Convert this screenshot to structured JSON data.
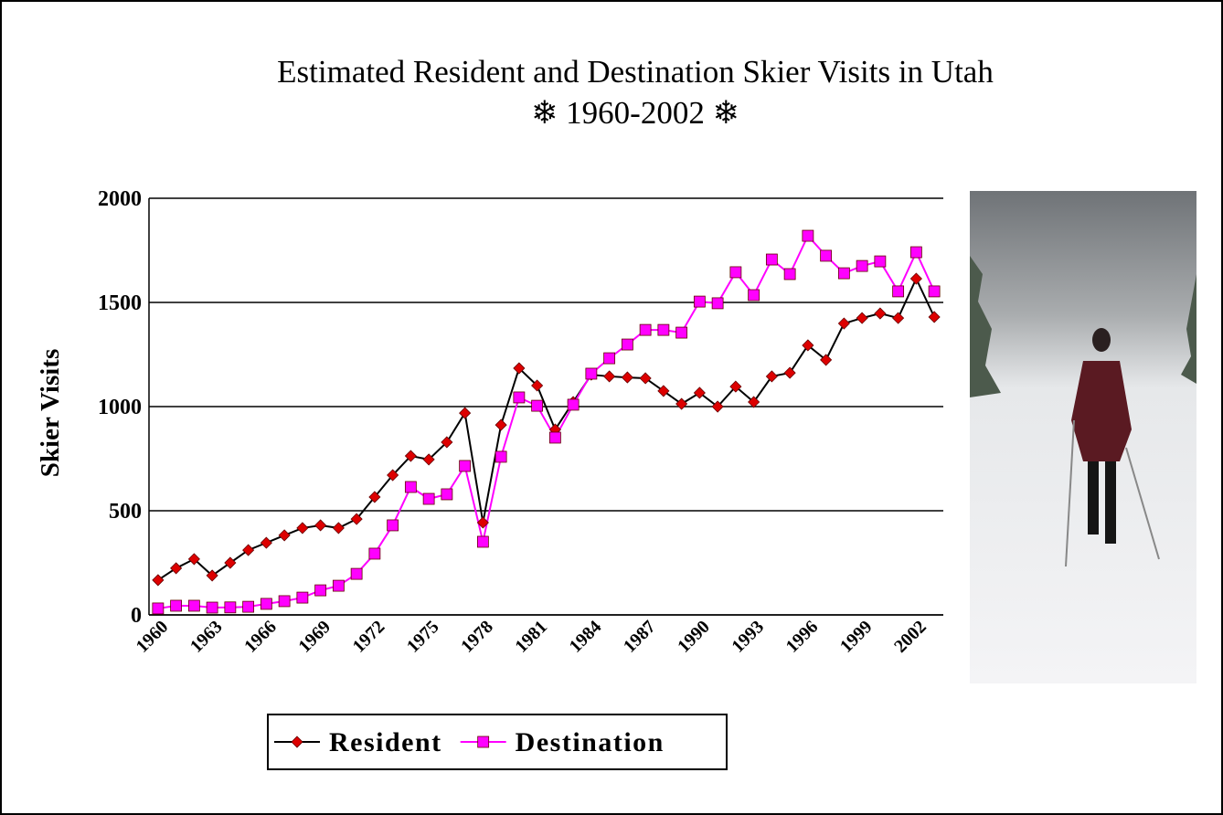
{
  "chart_data": {
    "type": "line",
    "title": "Estimated Resident and Destination Skier Visits in Utah",
    "subtitle": "❄ 1960-2002 ❄",
    "y_label": "Skier Visits",
    "categories": [
      "1960",
      null,
      null,
      "1963",
      null,
      null,
      "1966",
      null,
      null,
      "1969",
      null,
      null,
      "1972",
      null,
      null,
      "1975",
      null,
      null,
      "1978",
      null,
      null,
      "1981",
      null,
      null,
      "1984",
      null,
      null,
      "1987",
      null,
      null,
      "1990",
      null,
      null,
      "1993",
      null,
      null,
      "1996",
      null,
      null,
      "1999",
      null,
      null,
      "2002",
      null
    ],
    "series": [
      {
        "name": "Resident",
        "color": "#000000",
        "marker_color": "#dd0000",
        "marker": "diamond",
        "values": [
          167,
          224,
          268,
          189,
          250,
          311,
          346,
          382,
          417,
          430,
          417,
          460,
          566,
          671,
          763,
          746,
          829,
          969,
          443,
          912,
          1184,
          1101,
          890,
          1022,
          1153,
          1145,
          1140,
          1136,
          1075,
          1013,
          1066,
          1000,
          1096,
          1022,
          1145,
          1162,
          1294,
          1224,
          1399,
          1425,
          1447,
          1425,
          1614,
          1430
        ]
      },
      {
        "name": "Destination",
        "color": "#ff00ff",
        "marker_color": "#ff00ff",
        "marker": "square",
        "values": [
          31,
          44,
          44,
          35,
          36,
          39,
          53,
          66,
          83,
          118,
          140,
          197,
          294,
          430,
          614,
          557,
          579,
          715,
          351,
          759,
          1044,
          1004,
          851,
          1009,
          1158,
          1232,
          1298,
          1368,
          1368,
          1355,
          1504,
          1496,
          1645,
          1535,
          1706,
          1636,
          1820,
          1724,
          1640,
          1675,
          1697,
          1553,
          1741,
          1553
        ]
      }
    ],
    "ylim": [
      0,
      2000
    ],
    "yticks": [
      0,
      500,
      1000,
      1500,
      2000
    ],
    "grid": true,
    "legend": "bottom"
  }
}
